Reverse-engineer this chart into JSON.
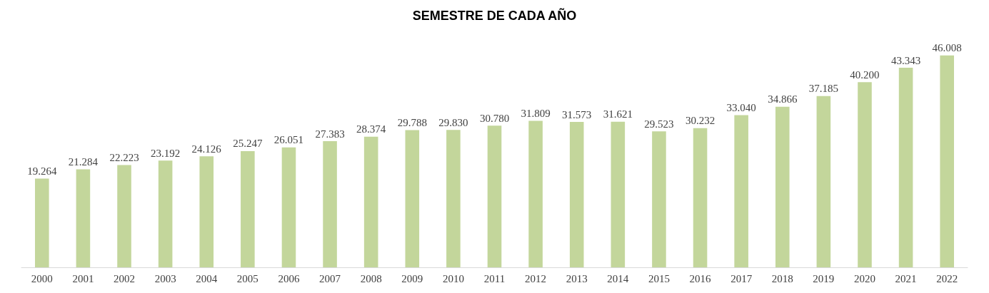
{
  "chart_data": {
    "type": "bar",
    "title": "SEMESTRE DE CADA AÑO",
    "categories": [
      "2000",
      "2001",
      "2002",
      "2003",
      "2004",
      "2005",
      "2006",
      "2007",
      "2008",
      "2009",
      "2010",
      "2011",
      "2012",
      "2013",
      "2014",
      "2015",
      "2016",
      "2017",
      "2018",
      "2019",
      "2020",
      "2021",
      "2022"
    ],
    "values": [
      19264,
      21284,
      22223,
      23192,
      24126,
      25247,
      26051,
      27383,
      28374,
      29788,
      29830,
      30780,
      31809,
      31573,
      31621,
      29523,
      30232,
      33040,
      34866,
      37185,
      40200,
      43343,
      46008
    ],
    "value_labels": [
      "19.264",
      "21.284",
      "22.223",
      "23.192",
      "24.126",
      "25.247",
      "26.051",
      "27.383",
      "28.374",
      "29.788",
      "29.830",
      "30.780",
      "31.809",
      "31.573",
      "31.621",
      "29.523",
      "30.232",
      "33.040",
      "34.866",
      "37.185",
      "40.200",
      "43.343",
      "46.008"
    ],
    "color": "#c3d69b",
    "tick_labels": "x"
  }
}
